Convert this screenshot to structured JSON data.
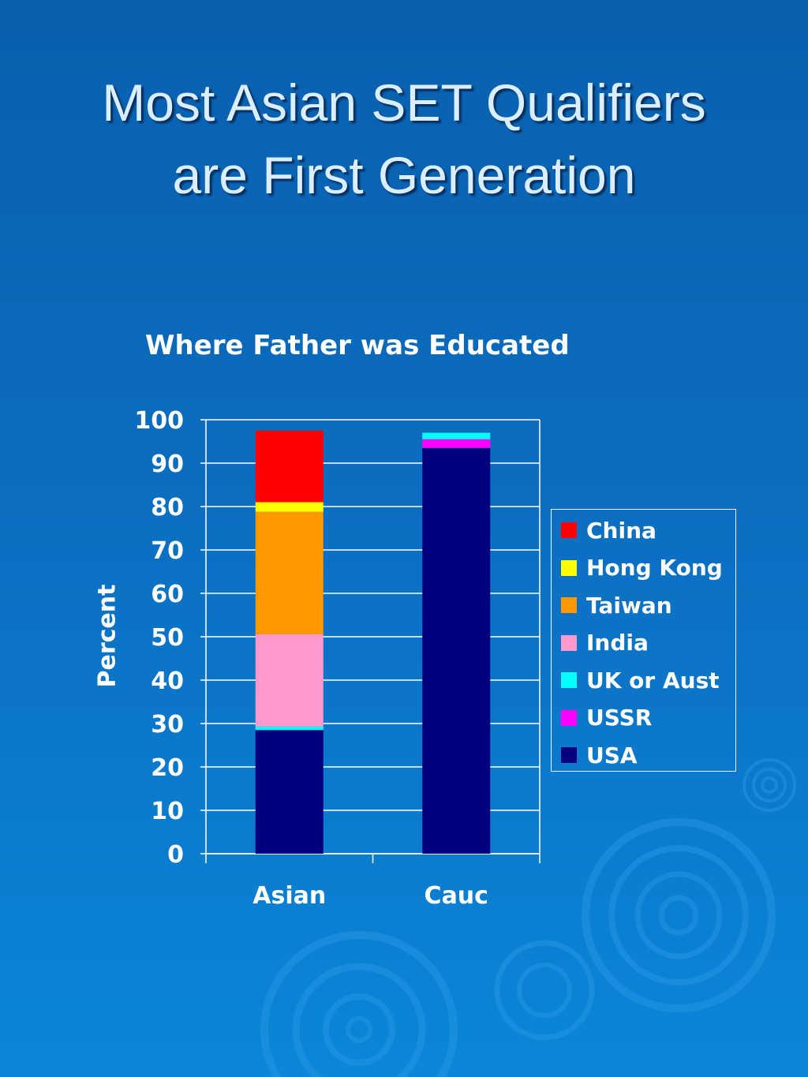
{
  "slide": {
    "title_line1": "Most Asian SET Qualifiers",
    "title_line2": "are First Generation"
  },
  "chart_data": {
    "type": "bar",
    "stacked": true,
    "title": "Where Father was Educated",
    "xlabel": "",
    "ylabel": "Percent",
    "categories": [
      "Asian",
      "Cauc"
    ],
    "ylim": [
      0,
      100
    ],
    "yticks": [
      0,
      10,
      20,
      30,
      40,
      50,
      60,
      70,
      80,
      90,
      100
    ],
    "grid": true,
    "legend_position": "right",
    "series": [
      {
        "name": "USA",
        "color": "#000080",
        "values": [
          28.5,
          93.5
        ]
      },
      {
        "name": "USSR",
        "color": "#ff00ff",
        "values": [
          0,
          2
        ]
      },
      {
        "name": "UK or Aust",
        "color": "#00ffff",
        "values": [
          0.8,
          1.5
        ]
      },
      {
        "name": "India",
        "color": "#ff99cc",
        "values": [
          21.3,
          0
        ]
      },
      {
        "name": "Taiwan",
        "color": "#ff9900",
        "values": [
          28.2,
          0
        ]
      },
      {
        "name": "Hong Kong",
        "color": "#ffff00",
        "values": [
          2.2,
          0
        ]
      },
      {
        "name": "China",
        "color": "#ff0000",
        "values": [
          16.5,
          0
        ]
      }
    ],
    "legend_order": [
      "China",
      "Hong Kong",
      "Taiwan",
      "India",
      "UK or Aust",
      "USSR",
      "USA"
    ]
  }
}
